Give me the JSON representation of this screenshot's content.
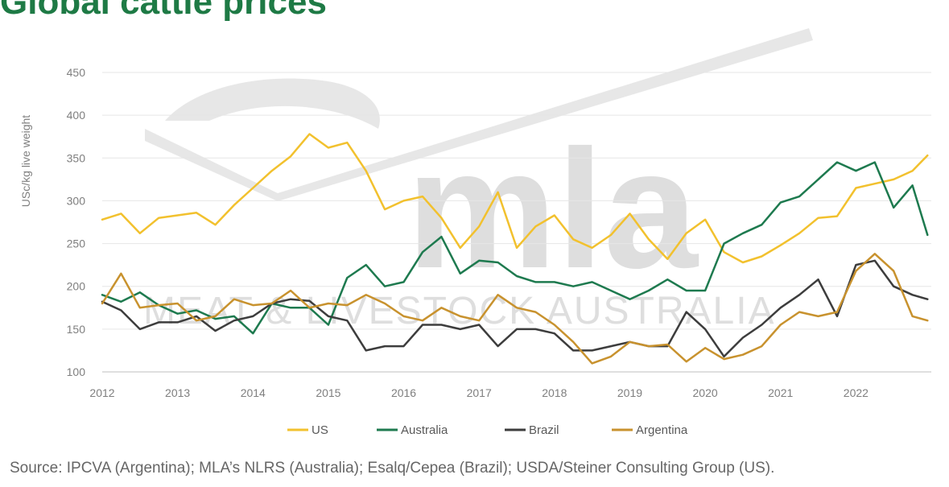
{
  "title": "Global cattle prices",
  "source": "Source: IPCVA (Argentina); MLA’s NLRS (Australia); Esalq/Cepea (Brazil); USDA/Steiner Consulting Group (US).",
  "watermark": {
    "logo_text": "mla",
    "subtitle": "MEAT & LIVESTOCK AUSTRALIA"
  },
  "colors": {
    "US": "#f2c12e",
    "Australia": "#1e7a4f",
    "Brazil": "#3d3d3d",
    "Argentina": "#c8922e",
    "watermark": "#d9d9d9",
    "grid": "#e6e6e6",
    "axis_text": "#7f7f7f"
  },
  "chart_data": {
    "type": "line",
    "ylabel": "USc/kg live weight",
    "xlabel": "",
    "ylim": [
      100,
      450
    ],
    "yticks": [
      100,
      150,
      200,
      250,
      300,
      350,
      400,
      450
    ],
    "xlim": [
      2012,
      2023
    ],
    "xticks": [
      "2012",
      "2013",
      "2014",
      "2015",
      "2016",
      "2017",
      "2018",
      "2019",
      "2020",
      "2021",
      "2022"
    ],
    "grid": "horizontal",
    "legend_position": "bottom",
    "series": [
      {
        "name": "US",
        "color": "#f2c12e",
        "x": [
          2012.0,
          2012.25,
          2012.5,
          2012.75,
          2013.0,
          2013.25,
          2013.5,
          2013.75,
          2014.0,
          2014.25,
          2014.5,
          2014.75,
          2015.0,
          2015.25,
          2015.5,
          2015.75,
          2016.0,
          2016.25,
          2016.5,
          2016.75,
          2017.0,
          2017.25,
          2017.5,
          2017.75,
          2018.0,
          2018.25,
          2018.5,
          2018.75,
          2019.0,
          2019.25,
          2019.5,
          2019.75,
          2020.0,
          2020.25,
          2020.5,
          2020.75,
          2021.0,
          2021.25,
          2021.5,
          2021.75,
          2022.0,
          2022.25,
          2022.5,
          2022.75,
          2022.95
        ],
        "y": [
          278,
          285,
          262,
          280,
          283,
          286,
          272,
          295,
          315,
          335,
          352,
          378,
          362,
          368,
          335,
          290,
          300,
          305,
          280,
          245,
          270,
          310,
          245,
          270,
          283,
          255,
          245,
          260,
          285,
          255,
          232,
          262,
          278,
          240,
          228,
          235,
          248,
          262,
          280,
          282,
          315,
          320,
          325,
          335,
          353
        ]
      },
      {
        "name": "Australia",
        "color": "#1e7a4f",
        "x": [
          2012.0,
          2012.25,
          2012.5,
          2012.75,
          2013.0,
          2013.25,
          2013.5,
          2013.75,
          2014.0,
          2014.25,
          2014.5,
          2014.75,
          2015.0,
          2015.25,
          2015.5,
          2015.75,
          2016.0,
          2016.25,
          2016.5,
          2016.75,
          2017.0,
          2017.25,
          2017.5,
          2017.75,
          2018.0,
          2018.25,
          2018.5,
          2018.75,
          2019.0,
          2019.25,
          2019.5,
          2019.75,
          2020.0,
          2020.25,
          2020.5,
          2020.75,
          2021.0,
          2021.25,
          2021.5,
          2021.75,
          2022.0,
          2022.25,
          2022.5,
          2022.75,
          2022.95
        ],
        "y": [
          190,
          182,
          193,
          178,
          168,
          172,
          162,
          165,
          145,
          180,
          175,
          175,
          155,
          210,
          225,
          200,
          205,
          240,
          258,
          215,
          230,
          228,
          212,
          205,
          205,
          200,
          205,
          195,
          185,
          195,
          208,
          195,
          195,
          250,
          262,
          272,
          298,
          305,
          325,
          345,
          335,
          345,
          292,
          318,
          260
        ]
      },
      {
        "name": "Brazil",
        "color": "#3d3d3d",
        "x": [
          2012.0,
          2012.25,
          2012.5,
          2012.75,
          2013.0,
          2013.25,
          2013.5,
          2013.75,
          2014.0,
          2014.25,
          2014.5,
          2014.75,
          2015.0,
          2015.25,
          2015.5,
          2015.75,
          2016.0,
          2016.25,
          2016.5,
          2016.75,
          2017.0,
          2017.25,
          2017.5,
          2017.75,
          2018.0,
          2018.25,
          2018.5,
          2018.75,
          2019.0,
          2019.25,
          2019.5,
          2019.75,
          2020.0,
          2020.25,
          2020.5,
          2020.75,
          2021.0,
          2021.25,
          2021.5,
          2021.75,
          2022.0,
          2022.25,
          2022.5,
          2022.75,
          2022.95
        ],
        "y": [
          182,
          172,
          150,
          158,
          158,
          165,
          148,
          160,
          165,
          180,
          185,
          183,
          165,
          160,
          125,
          130,
          130,
          155,
          155,
          150,
          155,
          130,
          150,
          150,
          145,
          125,
          125,
          130,
          135,
          130,
          130,
          170,
          150,
          118,
          140,
          155,
          175,
          190,
          208,
          165,
          225,
          230,
          200,
          190,
          185
        ]
      },
      {
        "name": "Argentina",
        "color": "#c8922e",
        "x": [
          2012.0,
          2012.25,
          2012.5,
          2012.75,
          2013.0,
          2013.25,
          2013.5,
          2013.75,
          2014.0,
          2014.25,
          2014.5,
          2014.75,
          2015.0,
          2015.25,
          2015.5,
          2015.75,
          2016.0,
          2016.25,
          2016.5,
          2016.75,
          2017.0,
          2017.25,
          2017.5,
          2017.75,
          2018.0,
          2018.25,
          2018.5,
          2018.75,
          2019.0,
          2019.25,
          2019.5,
          2019.75,
          2020.0,
          2020.25,
          2020.5,
          2020.75,
          2021.0,
          2021.25,
          2021.5,
          2021.75,
          2022.0,
          2022.25,
          2022.5,
          2022.75,
          2022.95
        ],
        "y": [
          180,
          215,
          175,
          178,
          180,
          160,
          165,
          185,
          178,
          180,
          195,
          175,
          180,
          178,
          190,
          180,
          165,
          160,
          175,
          165,
          160,
          190,
          175,
          170,
          155,
          135,
          110,
          118,
          135,
          130,
          132,
          112,
          128,
          115,
          120,
          130,
          155,
          170,
          165,
          170,
          218,
          238,
          218,
          165,
          160
        ]
      }
    ]
  }
}
